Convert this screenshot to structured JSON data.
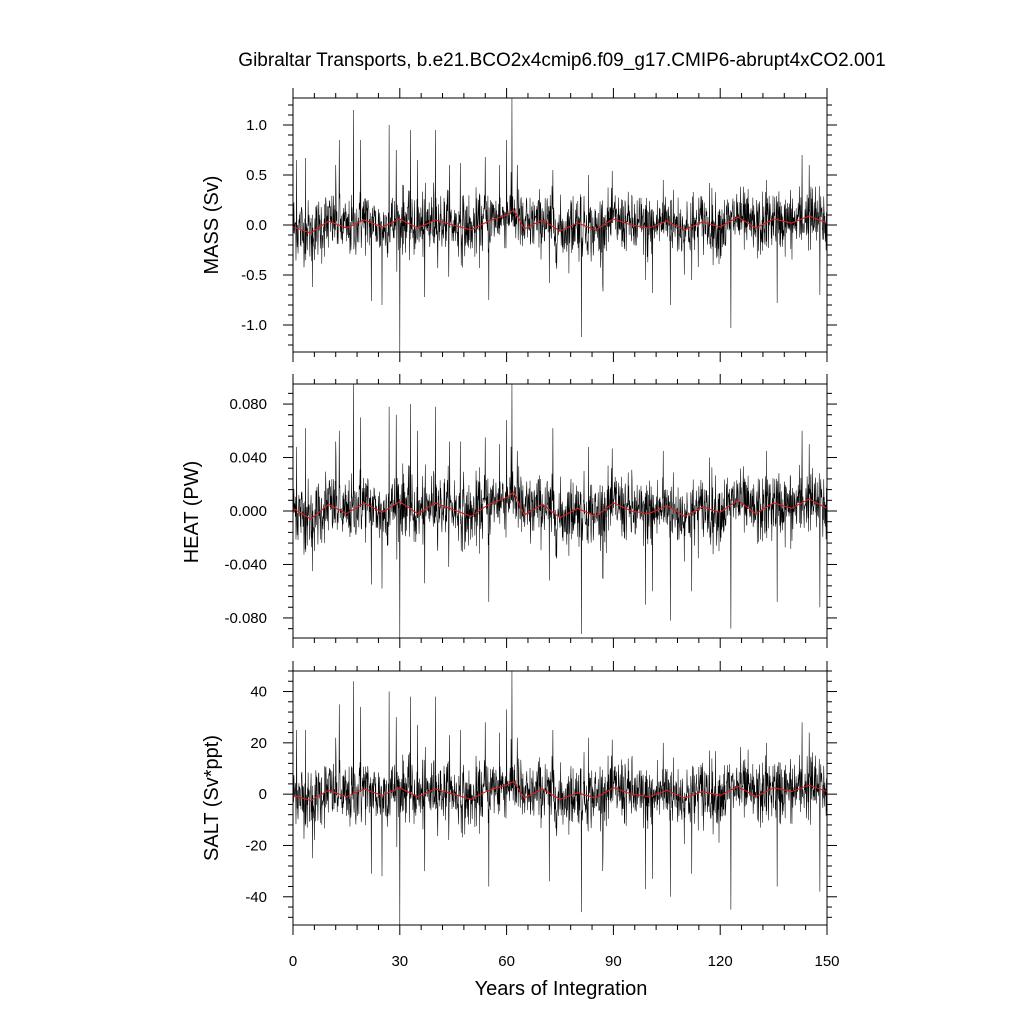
{
  "chart_data": {
    "type": "line",
    "title": "Gibraltar Transports, b.e21.BCO2x4cmip6.f09_g17.CMIP6-abrupt4xCO2.001",
    "xlabel": "Years of Integration",
    "x_ticks": [
      "0",
      "30",
      "60",
      "90",
      "120",
      "150"
    ],
    "xlim": [
      0,
      150
    ],
    "grid": false,
    "legend": "none",
    "series_colors": {
      "monthly": "#000000",
      "smoothed": "#d62020"
    },
    "panels": [
      {
        "ylabel": "MASS (Sv)",
        "ylim": [
          -1.27,
          1.27
        ],
        "y_ticks": [
          "-1.0",
          "-0.5",
          "0.0",
          "0.5",
          "1.0"
        ],
        "y_tick_values": [
          -1.0,
          -0.5,
          0.0,
          0.5,
          1.0
        ],
        "noise_sd": 0.15,
        "spikes": [
          [
            1,
            0.65
          ],
          [
            3.5,
            0.67
          ],
          [
            5.5,
            -0.62
          ],
          [
            12,
            0.6
          ],
          [
            13,
            0.85
          ],
          [
            17,
            1.15
          ],
          [
            19,
            0.85
          ],
          [
            22,
            -0.76
          ],
          [
            25,
            -0.8
          ],
          [
            27,
            1.0
          ],
          [
            29,
            0.75
          ],
          [
            30,
            -1.27
          ],
          [
            33,
            0.95
          ],
          [
            35,
            0.65
          ],
          [
            37,
            -0.72
          ],
          [
            40,
            0.95
          ],
          [
            44,
            0.6
          ],
          [
            47,
            0.62
          ],
          [
            54,
            0.68
          ],
          [
            55,
            -0.75
          ],
          [
            58,
            0.6
          ],
          [
            60,
            0.85
          ],
          [
            61.5,
            1.27
          ],
          [
            63,
            0.6
          ],
          [
            72,
            -0.58
          ],
          [
            73,
            0.55
          ],
          [
            81,
            -1.12
          ],
          [
            83,
            0.5
          ],
          [
            87,
            -0.6
          ],
          [
            99,
            -0.55
          ],
          [
            101,
            -0.68
          ],
          [
            104,
            0.45
          ],
          [
            106,
            -0.8
          ],
          [
            112,
            -0.55
          ],
          [
            117,
            0.42
          ],
          [
            123,
            -1.03
          ],
          [
            133,
            0.45
          ],
          [
            136,
            -0.78
          ],
          [
            143,
            0.7
          ],
          [
            145,
            0.6
          ],
          [
            148,
            -0.7
          ]
        ],
        "smooth": [
          [
            0,
            -0.02
          ],
          [
            5,
            -0.08
          ],
          [
            10,
            0.04
          ],
          [
            15,
            -0.03
          ],
          [
            20,
            0.05
          ],
          [
            25,
            -0.02
          ],
          [
            30,
            0.06
          ],
          [
            35,
            -0.03
          ],
          [
            40,
            0.05
          ],
          [
            45,
            0.0
          ],
          [
            50,
            -0.05
          ],
          [
            55,
            0.04
          ],
          [
            60,
            0.1
          ],
          [
            62,
            0.15
          ],
          [
            65,
            -0.04
          ],
          [
            70,
            0.05
          ],
          [
            75,
            -0.06
          ],
          [
            80,
            0.02
          ],
          [
            85,
            -0.05
          ],
          [
            90,
            0.06
          ],
          [
            95,
            0.0
          ],
          [
            100,
            -0.03
          ],
          [
            105,
            0.04
          ],
          [
            110,
            -0.05
          ],
          [
            115,
            0.03
          ],
          [
            120,
            -0.02
          ],
          [
            125,
            0.08
          ],
          [
            130,
            -0.03
          ],
          [
            135,
            0.06
          ],
          [
            140,
            0.02
          ],
          [
            145,
            0.09
          ],
          [
            150,
            0.02
          ]
        ]
      },
      {
        "ylabel": "HEAT (PW)",
        "ylim": [
          -0.095,
          0.095
        ],
        "y_ticks": [
          "-0.080",
          "-0.040",
          "0.000",
          "0.040",
          "0.080"
        ],
        "y_tick_values": [
          -0.08,
          -0.04,
          0.0,
          0.04,
          0.08
        ],
        "noise_sd": 0.012,
        "spikes": [
          [
            1,
            0.048
          ],
          [
            3.5,
            0.062
          ],
          [
            5.5,
            -0.045
          ],
          [
            12,
            0.052
          ],
          [
            13,
            0.06
          ],
          [
            17,
            0.095
          ],
          [
            19,
            0.07
          ],
          [
            22,
            -0.055
          ],
          [
            25,
            -0.058
          ],
          [
            27,
            0.078
          ],
          [
            29,
            0.072
          ],
          [
            30,
            -0.095
          ],
          [
            33,
            0.08
          ],
          [
            35,
            0.06
          ],
          [
            37,
            -0.054
          ],
          [
            40,
            0.078
          ],
          [
            44,
            0.052
          ],
          [
            47,
            0.052
          ],
          [
            54,
            0.055
          ],
          [
            55,
            -0.068
          ],
          [
            58,
            0.05
          ],
          [
            60,
            0.068
          ],
          [
            61.5,
            0.095
          ],
          [
            63,
            0.045
          ],
          [
            72,
            -0.052
          ],
          [
            73,
            0.062
          ],
          [
            81,
            -0.092
          ],
          [
            83,
            0.048
          ],
          [
            87,
            -0.05
          ],
          [
            99,
            -0.07
          ],
          [
            101,
            -0.06
          ],
          [
            104,
            0.045
          ],
          [
            106,
            -0.082
          ],
          [
            112,
            -0.06
          ],
          [
            117,
            0.04
          ],
          [
            123,
            -0.088
          ],
          [
            133,
            0.045
          ],
          [
            136,
            -0.068
          ],
          [
            143,
            0.06
          ],
          [
            145,
            0.05
          ],
          [
            148,
            -0.072
          ]
        ],
        "smooth": [
          [
            0,
            0.002
          ],
          [
            5,
            -0.006
          ],
          [
            10,
            0.005
          ],
          [
            15,
            -0.002
          ],
          [
            20,
            0.006
          ],
          [
            25,
            -0.001
          ],
          [
            30,
            0.007
          ],
          [
            35,
            -0.002
          ],
          [
            40,
            0.006
          ],
          [
            45,
            0.001
          ],
          [
            50,
            -0.004
          ],
          [
            55,
            0.005
          ],
          [
            60,
            0.01
          ],
          [
            62,
            0.014
          ],
          [
            65,
            -0.003
          ],
          [
            70,
            0.005
          ],
          [
            75,
            -0.005
          ],
          [
            80,
            0.002
          ],
          [
            85,
            -0.004
          ],
          [
            90,
            0.006
          ],
          [
            95,
            0.0
          ],
          [
            100,
            -0.002
          ],
          [
            105,
            0.004
          ],
          [
            110,
            -0.004
          ],
          [
            115,
            0.003
          ],
          [
            120,
            -0.001
          ],
          [
            125,
            0.008
          ],
          [
            130,
            -0.002
          ],
          [
            135,
            0.006
          ],
          [
            140,
            0.002
          ],
          [
            145,
            0.009
          ],
          [
            150,
            0.002
          ]
        ]
      },
      {
        "ylabel": "SALT (Sv*ppt)",
        "ylim": [
          -51,
          48
        ],
        "y_ticks": [
          "-40",
          "-20",
          "0",
          "20",
          "40"
        ],
        "y_tick_values": [
          -40,
          -20,
          0,
          20,
          40
        ],
        "noise_sd": 6,
        "spikes": [
          [
            1,
            25
          ],
          [
            3.5,
            25
          ],
          [
            5.5,
            -25
          ],
          [
            12,
            22
          ],
          [
            13,
            35
          ],
          [
            17,
            44
          ],
          [
            19,
            34
          ],
          [
            22,
            -31
          ],
          [
            25,
            -32
          ],
          [
            27,
            40
          ],
          [
            29,
            30
          ],
          [
            30,
            -51
          ],
          [
            33,
            38
          ],
          [
            35,
            27
          ],
          [
            37,
            -30
          ],
          [
            40,
            38
          ],
          [
            44,
            23
          ],
          [
            47,
            25
          ],
          [
            54,
            28
          ],
          [
            55,
            -36
          ],
          [
            58,
            24
          ],
          [
            60,
            33
          ],
          [
            61.5,
            48
          ],
          [
            63,
            22
          ],
          [
            72,
            -34
          ],
          [
            73,
            25
          ],
          [
            81,
            -46
          ],
          [
            83,
            22
          ],
          [
            87,
            -30
          ],
          [
            99,
            -37
          ],
          [
            101,
            -33
          ],
          [
            104,
            20
          ],
          [
            106,
            -40
          ],
          [
            112,
            -31
          ],
          [
            117,
            17
          ],
          [
            123,
            -45
          ],
          [
            133,
            20
          ],
          [
            136,
            -36
          ],
          [
            143,
            28
          ],
          [
            145,
            24
          ],
          [
            148,
            -38
          ]
        ],
        "smooth": [
          [
            0,
            -0.5
          ],
          [
            5,
            -2.5
          ],
          [
            10,
            1.5
          ],
          [
            15,
            -1.0
          ],
          [
            20,
            2.0
          ],
          [
            25,
            -0.5
          ],
          [
            30,
            2.5
          ],
          [
            35,
            -1.0
          ],
          [
            40,
            2.0
          ],
          [
            45,
            0.0
          ],
          [
            50,
            -2.0
          ],
          [
            55,
            1.5
          ],
          [
            60,
            3.5
          ],
          [
            62,
            5.0
          ],
          [
            65,
            -1.5
          ],
          [
            70,
            2.0
          ],
          [
            75,
            -2.0
          ],
          [
            80,
            0.5
          ],
          [
            85,
            -1.5
          ],
          [
            90,
            2.5
          ],
          [
            95,
            0.0
          ],
          [
            100,
            -1.0
          ],
          [
            105,
            1.5
          ],
          [
            110,
            -1.5
          ],
          [
            115,
            1.0
          ],
          [
            120,
            -0.5
          ],
          [
            125,
            3.0
          ],
          [
            130,
            -1.0
          ],
          [
            135,
            2.5
          ],
          [
            140,
            1.0
          ],
          [
            145,
            3.5
          ],
          [
            150,
            1.0
          ]
        ]
      }
    ]
  }
}
